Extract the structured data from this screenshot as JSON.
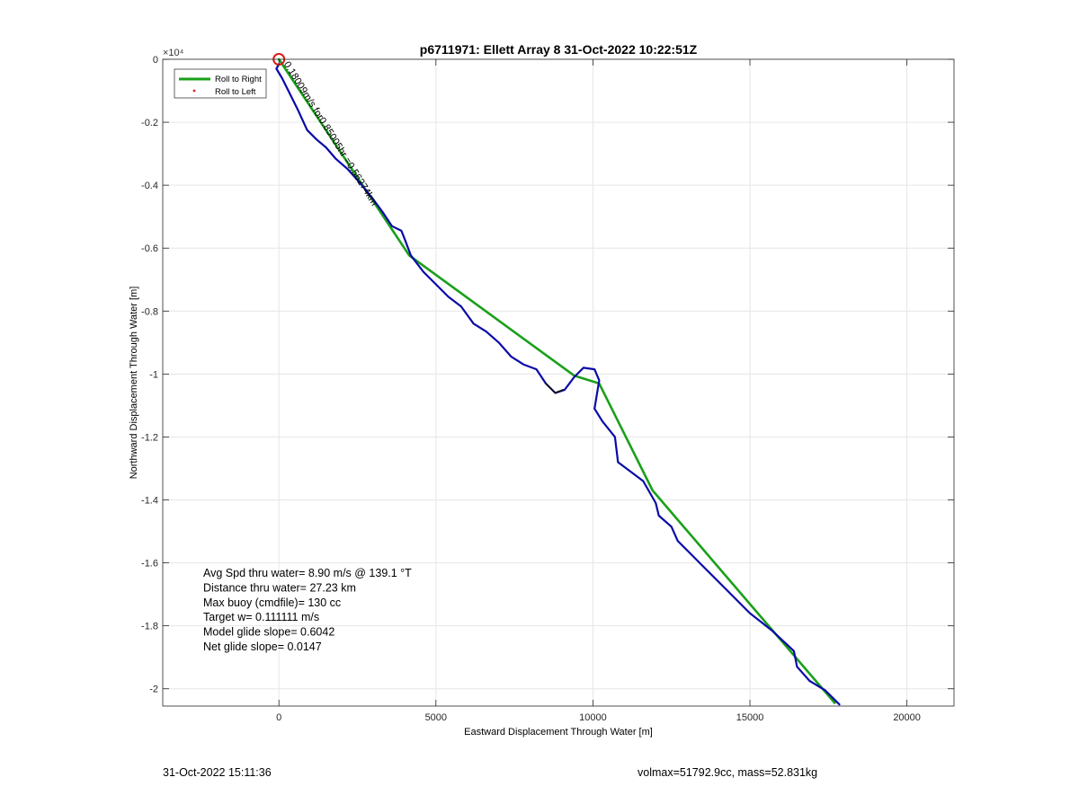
{
  "chart_data": {
    "type": "line",
    "title": "p6711971: Ellett Array 8 31-Oct-2022 10:22:51Z",
    "xlabel": "Eastward Displacement Through Water [m]",
    "ylabel": "Northward Displacement Through Water [m]",
    "xlim": [
      -3700,
      21500
    ],
    "ylim": [
      -20550,
      0
    ],
    "x_ticks": [
      0,
      5000,
      10000,
      15000,
      20000
    ],
    "x_tick_labels": [
      "0",
      "5000",
      "10000",
      "15000",
      "20000"
    ],
    "y_ticks": [
      0,
      -2000,
      -4000,
      -6000,
      -8000,
      -10000,
      -12000,
      -14000,
      -16000,
      -18000,
      -20000
    ],
    "y_tick_labels": [
      "0",
      "-0.2",
      "-0.4",
      "-0.6",
      "-0.8",
      "-1",
      "-1.2",
      "-1.4",
      "-1.6",
      "-1.8",
      "-2"
    ],
    "y_exponent_label": "×10⁴",
    "grid": true,
    "legend": {
      "placement": "top-left",
      "entries": [
        {
          "label": "Roll to Right",
          "color": "#1aa01a",
          "style": "line"
        },
        {
          "label": "Roll to Left",
          "color": "#e02020",
          "style": "dot"
        }
      ]
    },
    "series": [
      {
        "color": "#1aa01a",
        "style": "line",
        "points": [
          [
            0,
            0
          ],
          [
            4150,
            -6230
          ],
          [
            9400,
            -10050
          ],
          [
            10200,
            -10300
          ],
          [
            11900,
            -13700
          ],
          [
            17700,
            -20450
          ]
        ]
      },
      {
        "color": "#0a0aa8",
        "style": "line",
        "points": [
          [
            0,
            -150
          ],
          [
            -80,
            -300
          ],
          [
            100,
            -600
          ],
          [
            300,
            -1000
          ],
          [
            600,
            -1600
          ],
          [
            900,
            -2250
          ],
          [
            1200,
            -2550
          ],
          [
            1500,
            -2800
          ],
          [
            1800,
            -3150
          ],
          [
            2200,
            -3500
          ],
          [
            2600,
            -3950
          ],
          [
            3000,
            -4450
          ],
          [
            3300,
            -4850
          ],
          [
            3600,
            -5300
          ],
          [
            3900,
            -5450
          ],
          [
            4000,
            -5700
          ],
          [
            4200,
            -6230
          ],
          [
            4600,
            -6750
          ],
          [
            5000,
            -7150
          ],
          [
            5400,
            -7550
          ],
          [
            5800,
            -7850
          ],
          [
            6200,
            -8400
          ],
          [
            6600,
            -8650
          ],
          [
            7000,
            -9000
          ],
          [
            7400,
            -9450
          ],
          [
            7800,
            -9700
          ],
          [
            8200,
            -9850
          ],
          [
            8500,
            -10300
          ],
          [
            8800,
            -10600
          ],
          [
            9100,
            -10500
          ],
          [
            9400,
            -10100
          ],
          [
            9700,
            -9800
          ],
          [
            10050,
            -9850
          ],
          [
            10200,
            -10200
          ],
          [
            10050,
            -11100
          ],
          [
            10300,
            -11500
          ],
          [
            10700,
            -12000
          ],
          [
            10800,
            -12800
          ],
          [
            11200,
            -13100
          ],
          [
            11600,
            -13400
          ],
          [
            12000,
            -14100
          ],
          [
            12100,
            -14500
          ],
          [
            12500,
            -14850
          ],
          [
            12700,
            -15300
          ],
          [
            13100,
            -15700
          ],
          [
            13600,
            -16200
          ],
          [
            14300,
            -16900
          ],
          [
            15000,
            -17600
          ],
          [
            15700,
            -18150
          ],
          [
            16400,
            -18800
          ],
          [
            16500,
            -19300
          ],
          [
            16900,
            -19750
          ],
          [
            17400,
            -20050
          ],
          [
            17850,
            -20500
          ]
        ]
      },
      {
        "color": "#111111",
        "style": "line",
        "points": [
          [
            8500,
            -10300
          ],
          [
            8800,
            -10600
          ],
          [
            9050,
            -10500
          ]
        ]
      }
    ],
    "start_marker": {
      "x": 0,
      "y": 0,
      "color": "#d81c1c",
      "style": "circle"
    },
    "path_label": {
      "text": "0.18009m/s for0.85005hr =0.56274km",
      "x": 150,
      "y": -150,
      "angle": 58
    },
    "stats_lines": [
      "Avg Spd thru water=  8.90 m/s @ 139.1 °T",
      "Distance thru water= 27.23 km",
      "Max buoy (cmdfile)= 130 cc",
      "Target w= 0.111111 m/s",
      "Model glide slope= 0.6042",
      "Net glide slope= 0.0147"
    ]
  },
  "footer": {
    "left": "31-Oct-2022 15:11:36",
    "right": "volmax=51792.9cc, mass=52.831kg"
  }
}
